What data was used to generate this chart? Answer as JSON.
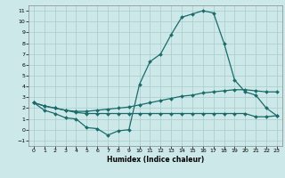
{
  "xlabel": "Humidex (Indice chaleur)",
  "bg_color": "#cde8e8",
  "grid_color": "#aacccc",
  "line_color": "#1a6b6b",
  "xlim": [
    -0.5,
    23.5
  ],
  "ylim": [
    -1.5,
    11.5
  ],
  "xticks": [
    0,
    1,
    2,
    3,
    4,
    5,
    6,
    7,
    8,
    9,
    10,
    11,
    12,
    13,
    14,
    15,
    16,
    17,
    18,
    19,
    20,
    21,
    22,
    23
  ],
  "yticks": [
    -1,
    0,
    1,
    2,
    3,
    4,
    5,
    6,
    7,
    8,
    9,
    10,
    11
  ],
  "line1_x": [
    0,
    1,
    2,
    3,
    4,
    5,
    6,
    7,
    8,
    9,
    10,
    11,
    12,
    13,
    14,
    15,
    16,
    17,
    18,
    19,
    20,
    21,
    22,
    23
  ],
  "line1_y": [
    2.5,
    1.8,
    1.5,
    1.1,
    1.0,
    0.2,
    0.1,
    -0.5,
    -0.1,
    0.0,
    4.2,
    6.3,
    7.0,
    8.8,
    10.4,
    10.7,
    11.0,
    10.8,
    8.0,
    4.6,
    3.5,
    3.2,
    2.0,
    1.3
  ],
  "line2_x": [
    0,
    1,
    2,
    3,
    4,
    5,
    6,
    7,
    8,
    9,
    10,
    11,
    12,
    13,
    14,
    15,
    16,
    17,
    18,
    19,
    20,
    21,
    22,
    23
  ],
  "line2_y": [
    2.5,
    2.2,
    2.0,
    1.8,
    1.7,
    1.7,
    1.8,
    1.9,
    2.0,
    2.1,
    2.3,
    2.5,
    2.7,
    2.9,
    3.1,
    3.2,
    3.4,
    3.5,
    3.6,
    3.7,
    3.7,
    3.6,
    3.5,
    3.5
  ],
  "line3_x": [
    0,
    1,
    2,
    3,
    4,
    5,
    6,
    7,
    8,
    9,
    10,
    11,
    12,
    13,
    14,
    15,
    16,
    17,
    18,
    19,
    20,
    21,
    22,
    23
  ],
  "line3_y": [
    2.5,
    2.2,
    2.0,
    1.8,
    1.6,
    1.5,
    1.5,
    1.5,
    1.5,
    1.5,
    1.5,
    1.5,
    1.5,
    1.5,
    1.5,
    1.5,
    1.5,
    1.5,
    1.5,
    1.5,
    1.5,
    1.2,
    1.2,
    1.3
  ]
}
